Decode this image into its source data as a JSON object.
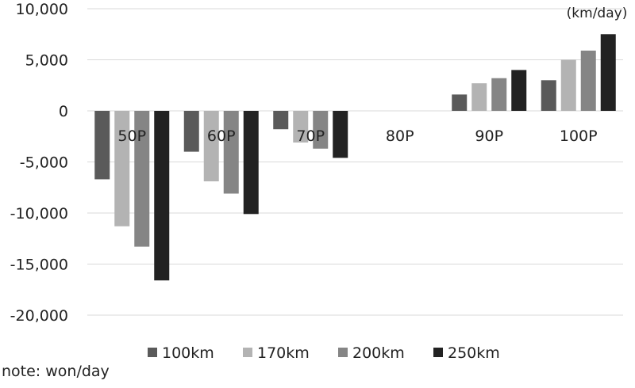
{
  "chart_data": {
    "type": "bar",
    "unit_label": "(km/day)",
    "categories": [
      "50P",
      "60P",
      "70P",
      "80P",
      "90P",
      "100P"
    ],
    "series": [
      {
        "name": "100km",
        "color": "#5a5a5a",
        "values": [
          -6700,
          -4000,
          -1800,
          0,
          1600,
          3000
        ]
      },
      {
        "name": "170km",
        "color": "#b3b3b3",
        "values": [
          -11300,
          -6900,
          -3100,
          0,
          2700,
          5000
        ]
      },
      {
        "name": "200km",
        "color": "#858585",
        "values": [
          -13300,
          -8100,
          -3700,
          0,
          3200,
          5900
        ]
      },
      {
        "name": "250km",
        "color": "#222222",
        "values": [
          -16600,
          -10100,
          -4600,
          0,
          4000,
          7500
        ]
      }
    ],
    "ylim": [
      -20000,
      10000
    ],
    "yticks": [
      10000,
      5000,
      0,
      -5000,
      -10000,
      -15000,
      -20000
    ],
    "ytick_labels": [
      "10,000",
      "5,000",
      "0",
      "-5,000",
      "-10,000",
      "-15,000",
      "-20,000"
    ],
    "legend": "bottom",
    "grid": true
  },
  "note": "note: won/day"
}
